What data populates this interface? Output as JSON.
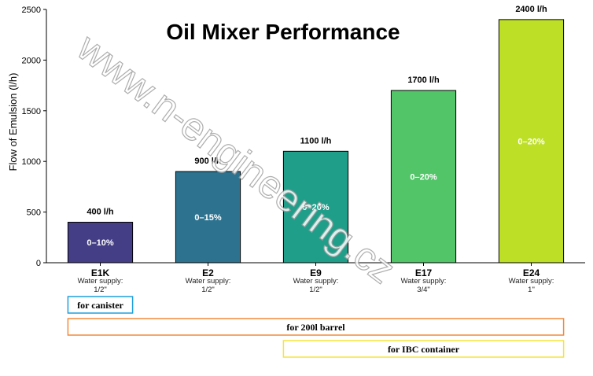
{
  "chart_data": {
    "type": "bar",
    "title": "Oil Mixer Performance",
    "ylabel": "Flow of Emulsion (l/h)",
    "ylim": [
      0,
      2500
    ],
    "yticks": [
      0,
      500,
      1000,
      1500,
      2000,
      2500
    ],
    "grid": false,
    "categories": [
      "E1K",
      "E2",
      "E9",
      "E17",
      "E24"
    ],
    "values": [
      400,
      900,
      1100,
      1700,
      2400
    ],
    "value_labels": [
      "400 l/h",
      "900 l/h",
      "1100 l/h",
      "1700 l/h",
      "2400 l/h"
    ],
    "range_labels": [
      "0–10%",
      "0–15%",
      "0–20%",
      "0–20%",
      "0–20%"
    ],
    "water_supply_label": "Water supply:",
    "water_supply": [
      "1/2\"",
      "1/2\"",
      "1/2\"",
      "3/4\"",
      "1\""
    ],
    "colors": [
      "#433e85",
      "#2d7390",
      "#1f9e8a",
      "#52c569",
      "#bddf26"
    ],
    "containers": [
      {
        "label": "for canister",
        "start": "E1K",
        "end": "E1K",
        "color": "#1f9fdc"
      },
      {
        "label": "for 200l barrel",
        "start": "E1K",
        "end": "E24",
        "color": "#f28a3c"
      },
      {
        "label": "for IBC container",
        "start": "E9",
        "end": "E24",
        "color": "#f5e43a"
      }
    ]
  },
  "watermark": "www.n-engineering.cz"
}
